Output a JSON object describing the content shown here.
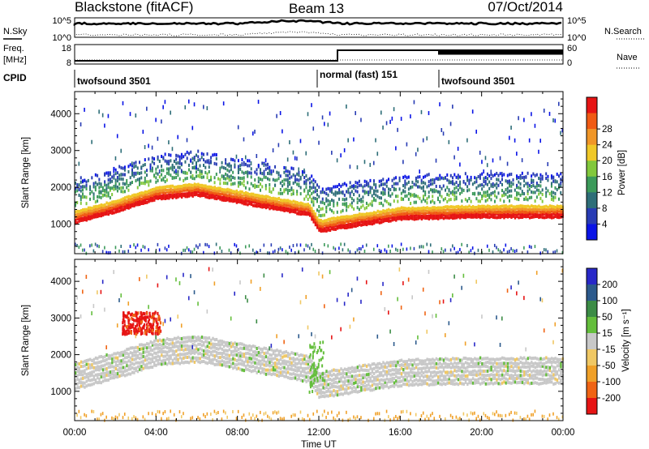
{
  "header": {
    "radar": "Blackstone (fitACF)",
    "beam": "Beam 13",
    "date": "07/Oct/2014"
  },
  "status_panels": {
    "nsky_label": "N.Sky",
    "nsky_ticks": [
      "10^5",
      "10^0"
    ],
    "nsearch_label": "N.Search",
    "nsearch_ticks": [
      "10^5",
      "10^0"
    ],
    "freq_label": "Freq.",
    "freq_unit": "[MHz]",
    "freq_ticks": [
      "18",
      "8"
    ],
    "nave_label": "Nave",
    "nave_ticks": [
      "60",
      "0"
    ],
    "cpid_label": "CPID",
    "cpid_segments": [
      {
        "name": "twofsound 3501",
        "start_hour": 0,
        "end_hour": 12.6
      },
      {
        "name": "normal (fast) 151",
        "start_hour": 12.6,
        "end_hour": 18.0
      },
      {
        "name": "twofsound 3501",
        "start_hour": 18.0,
        "end_hour": 24
      }
    ]
  },
  "chart_data": [
    {
      "type": "heatmap",
      "panel": "power",
      "ylabel": "Slant Range [km]",
      "xlabel": "Time UT",
      "xlim": [
        0,
        24
      ],
      "ylim": [
        200,
        4600
      ],
      "x_ticks": [
        "00:00",
        "04:00",
        "08:00",
        "12:00",
        "16:00",
        "20:00",
        "00:00"
      ],
      "y_ticks": [
        1000,
        2000,
        3000,
        4000
      ],
      "colorbar": {
        "label": "Power [dB]",
        "ticks": [
          4,
          8,
          12,
          16,
          20,
          24,
          28
        ],
        "colors": [
          "#0a14e6",
          "#283cb4",
          "#2e6e78",
          "#3c9a5a",
          "#82c83c",
          "#f0c828",
          "#f09628",
          "#f05a14",
          "#e61414"
        ]
      },
      "echo_band": [
        {
          "hour": 0.0,
          "range_km": 1150
        },
        {
          "hour": 2.0,
          "range_km": 1450
        },
        {
          "hour": 4.0,
          "range_km": 1800
        },
        {
          "hour": 6.0,
          "range_km": 1900
        },
        {
          "hour": 8.0,
          "range_km": 1700
        },
        {
          "hour": 10.0,
          "range_km": 1500
        },
        {
          "hour": 11.5,
          "range_km": 1350
        },
        {
          "hour": 12.0,
          "range_km": 900
        },
        {
          "hour": 13.0,
          "range_km": 1000
        },
        {
          "hour": 16.0,
          "range_km": 1250
        },
        {
          "hour": 20.0,
          "range_km": 1300
        },
        {
          "hour": 24.0,
          "range_km": 1300
        }
      ]
    },
    {
      "type": "heatmap",
      "panel": "velocity",
      "ylabel": "Slant Range [km]",
      "xlabel": "Time UT",
      "xlim": [
        0,
        24
      ],
      "ylim": [
        200,
        4600
      ],
      "x_ticks": [
        "00:00",
        "04:00",
        "08:00",
        "12:00",
        "16:00",
        "20:00",
        "00:00"
      ],
      "y_ticks": [
        1000,
        2000,
        3000,
        4000
      ],
      "colorbar": {
        "label": "Velocity [m s⁻¹]",
        "ticks": [
          200,
          100,
          50,
          15,
          -15,
          -50,
          -100,
          -200
        ],
        "colors": [
          "#2828c8",
          "#2c5a8c",
          "#3c8c46",
          "#64be3c",
          "#c8c8c8",
          "#f0c864",
          "#f0a028",
          "#f06414",
          "#e61414"
        ]
      },
      "features": [
        {
          "desc": "red patch",
          "hours": [
            2.3,
            4.2
          ],
          "range_km": [
            2600,
            3200
          ],
          "velocity": -200
        },
        {
          "desc": "grey ground scatter band",
          "hours": [
            0,
            24
          ],
          "range_km": [
            1000,
            1900
          ],
          "velocity": 0
        },
        {
          "desc": "green streak",
          "hours": [
            11.5,
            12.2
          ],
          "range_km": [
            1000,
            2400
          ],
          "velocity": 60
        }
      ]
    }
  ]
}
